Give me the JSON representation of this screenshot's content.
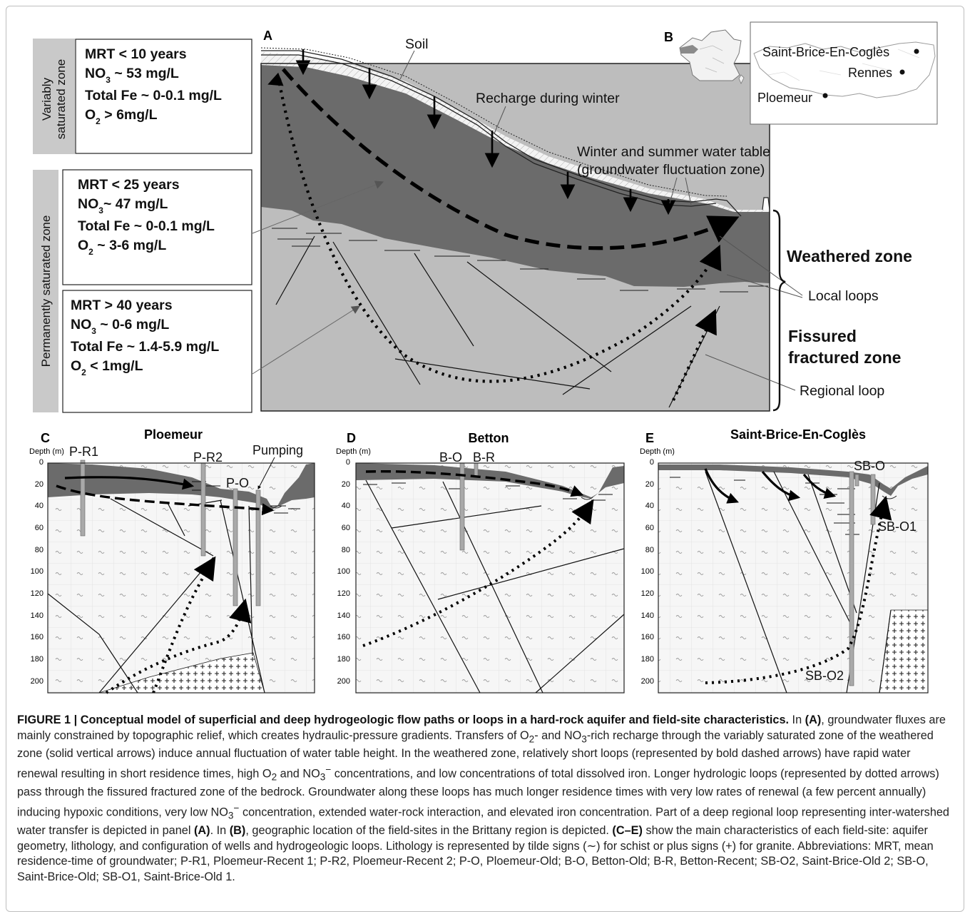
{
  "zones": {
    "variably_label_1": "Variably",
    "variably_label_2": "saturated zone",
    "permanent_label": "Permanently saturated zone"
  },
  "boxes": [
    {
      "mrt": "MRT < 10 years",
      "no3_prefix": "NO",
      "no3_sub": "3",
      "no3_value": " ~ 53 mg/L",
      "fe": "Total Fe ~ 0-0.1 mg/L",
      "o2_prefix": "O",
      "o2_sub": "2",
      "o2_value": " > 6mg/L"
    },
    {
      "mrt": "MRT < 25 years",
      "no3_prefix": "NO",
      "no3_sub": "3",
      "no3_value": "~ 47 mg/L",
      "fe": "Total Fe ~ 0-0.1 mg/L",
      "o2_prefix": "O",
      "o2_sub": "2",
      "o2_value": " ~ 3-6 mg/L"
    },
    {
      "mrt": "MRT > 40 years",
      "no3_prefix": "NO",
      "no3_sub": "3",
      "no3_value": " ~ 0-6 mg/L",
      "fe": "Total Fe ~ 1.4-5.9 mg/L",
      "o2_prefix": "O",
      "o2_sub": "2",
      "o2_value": " < 1mg/L"
    }
  ],
  "panelA": {
    "letter": "A",
    "soil": "Soil",
    "recharge": "Recharge during winter",
    "water_table_1": "Winter and summer water table",
    "water_table_2": "(groundwater fluctuation zone)",
    "weathered": "Weathered zone",
    "local_loops": "Local loops",
    "fissured_1": "Fissured",
    "fissured_2": "fractured zone",
    "regional_loop": "Regional loop"
  },
  "panelB": {
    "letter": "B",
    "sites": [
      "Saint-Brice-En-Coglès",
      "Rennes",
      "Ploemeur"
    ]
  },
  "depth_axis": {
    "label": "Depth (m)",
    "ticks": [
      "0",
      "20",
      "40",
      "60",
      "80",
      "100",
      "120",
      "140",
      "160",
      "180",
      "200"
    ]
  },
  "panelC": {
    "letter": "C",
    "title": "Ploemeur",
    "wells": [
      "P-R1",
      "P-R2",
      "P-O"
    ],
    "pumping": "Pumping"
  },
  "panelD": {
    "letter": "D",
    "title": "Betton",
    "wells": [
      "B-O",
      "B-R"
    ]
  },
  "panelE": {
    "letter": "E",
    "title": "Saint-Brice-En-Coglès",
    "wells": [
      "SB-O",
      "SB-O1",
      "SB-O2"
    ]
  },
  "caption": {
    "bold": "FIGURE 1 | Conceptual model of superficial and deep hydrogeologic flow paths or loops in a hard-rock aquifer and field-site characteristics.",
    "t1": " In ",
    "b1": "(A)",
    "t2": ", groundwater fluxes are mainly constrained by topographic relief, which creates hydraulic-pressure gradients. Transfers of O",
    "s1": "2",
    "t3": "- and NO",
    "s2": "3",
    "t4": "-rich recharge through the variably saturated zone of the weathered zone (solid vertical arrows) induce annual fluctuation of water table height. In the weathered zone, relatively short loops (represented by bold dashed arrows) have rapid water renewal resulting in short residence times, high O",
    "s3": "2",
    "t5": " and NO",
    "s4": "3",
    "sup1": "−",
    "t6": " concentrations, and low concentrations of total dissolved iron. Longer hydrologic loops (represented by dotted arrows) pass through the fissured fractured zone of the bedrock. Groundwater along these loops has much longer residence times with very low rates of renewal (a few percent annually) inducing hypoxic conditions, very low NO",
    "s5": "3",
    "sup2": "−",
    "t7": " concentration, extended water-rock interaction, and elevated iron concentration. Part of a deep regional loop representing inter-watershed water transfer is depicted in panel ",
    "b2": "(A)",
    "t8": ". In ",
    "b3": "(B)",
    "t9": ", geographic location of the field-sites in the Brittany region is depicted. ",
    "b4": "(C–E)",
    "t10": " show the main characteristics of each field-site: aquifer geometry, lithology, and configuration of wells and hydrogeologic loops. Lithology is represented by tilde signs (∼) for schist or plus signs (+) for granite. Abbreviations: MRT, mean residence-time of groundwater; P-R1, Ploemeur-Recent 1; P-R2, Ploemeur-Recent 2; P-O, Ploemeur-Old; B-O, Betton-Old; B-R, Betton-Recent; SB-O2, Saint-Brice-Old 2; SB-O, Saint-Brice-Old; SB-O1, Saint-Brice-Old 1."
  },
  "colors": {
    "weathered_dark": "#6b6b6b",
    "fissured_light": "#bdbdbd",
    "section_fill": "#f6f6f6",
    "well_gray": "#a9a9a9",
    "zone_tab": "#c9c9c9"
  }
}
